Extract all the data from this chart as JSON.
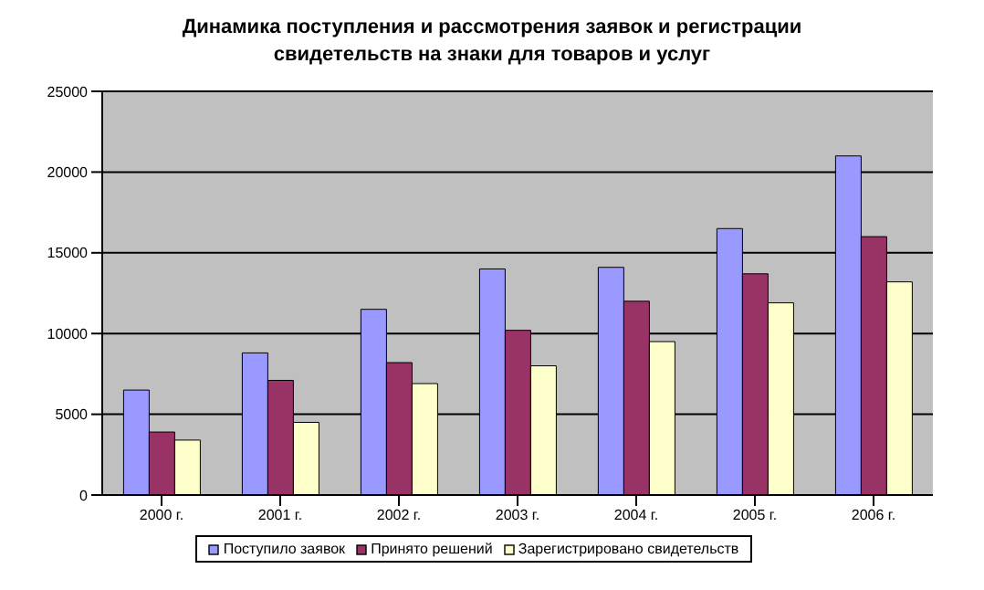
{
  "chart_data": {
    "type": "bar",
    "title": "Динамика поступления и рассмотрения заявок и регистрации свидетельств на знаки для товаров и услуг",
    "categories": [
      "2000 г.",
      "2001 г.",
      "2002 г.",
      "2003 г.",
      "2004 г.",
      "2005 г.",
      "2006 г."
    ],
    "series": [
      {
        "name": "Поступило заявок",
        "color": "#9999ff",
        "values": [
          6500,
          8800,
          11500,
          14000,
          14100,
          16500,
          21000
        ]
      },
      {
        "name": "Принято  решений",
        "color": "#993366",
        "values": [
          3900,
          7100,
          8200,
          10200,
          12000,
          13700,
          16000
        ]
      },
      {
        "name": "Зарегистрировано  свидетельств",
        "color": "#ffffcc",
        "values": [
          3400,
          4500,
          6900,
          8000,
          9500,
          11900,
          13200
        ]
      }
    ],
    "ylim": [
      0,
      25000
    ],
    "yticks": [
      0,
      5000,
      10000,
      15000,
      20000,
      25000
    ],
    "grid": "y",
    "legend": "bottom"
  }
}
